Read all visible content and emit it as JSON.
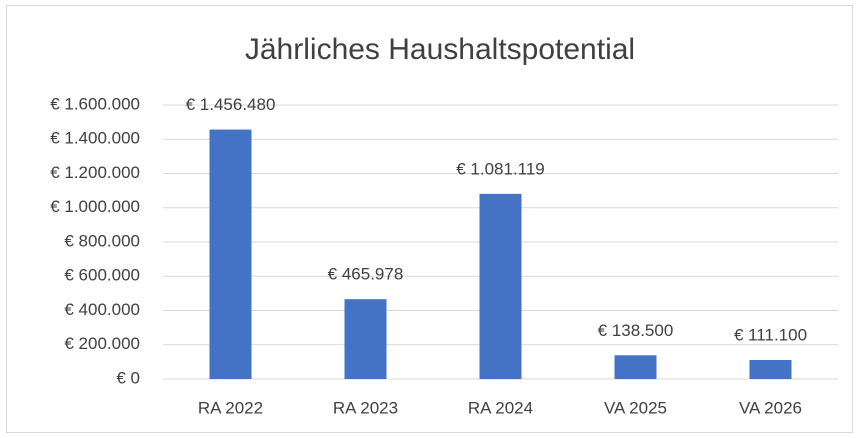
{
  "chart_data": {
    "type": "bar",
    "title": "Jährliches Haushaltspotential",
    "categories": [
      "RA 2022",
      "RA 2023",
      "RA 2024",
      "VA 2025",
      "VA 2026"
    ],
    "values": [
      1456480,
      465978,
      1081119,
      138500,
      111100
    ],
    "value_labels": [
      "€ 1.456.480",
      "€ 465.978",
      "€ 1.081.119",
      "€ 138.500",
      "€ 111.100"
    ],
    "color": "#4472c4",
    "ylim": [
      0,
      1600000
    ],
    "yticks": [
      {
        "value": 0,
        "label": "€ 0"
      },
      {
        "value": 200000,
        "label": "€ 200.000"
      },
      {
        "value": 400000,
        "label": "€ 400.000"
      },
      {
        "value": 600000,
        "label": "€ 600.000"
      },
      {
        "value": 800000,
        "label": "€ 800.000"
      },
      {
        "value": 1000000,
        "label": "€ 1.000.000"
      },
      {
        "value": 1200000,
        "label": "€ 1.200.000"
      },
      {
        "value": 1400000,
        "label": "€ 1.400.000"
      },
      {
        "value": 1600000,
        "label": "€ 1.600.000"
      }
    ],
    "grid": true
  }
}
